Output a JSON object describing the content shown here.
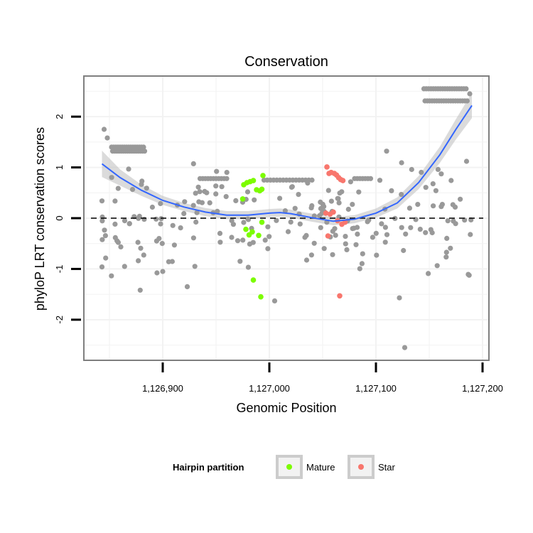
{
  "chart_data": {
    "type": "scatter",
    "title": "Conservation",
    "xlabel": "Genomic Position",
    "ylabel": "phyloP LRT conservation scores",
    "xlim": [
      1126826,
      1127206
    ],
    "ylim": [
      -2.8,
      2.8
    ],
    "x_ticks": [
      1126900,
      1127000,
      1127100,
      1127200
    ],
    "x_tick_labels": [
      "1,126,900",
      "1,127,000",
      "1,127,100",
      "1,127,200"
    ],
    "y_ticks": [
      -2,
      -1,
      0,
      1,
      2
    ],
    "y_tick_labels": [
      "-2",
      "-1",
      "0",
      "1",
      "2"
    ],
    "grid": true,
    "reference_line": {
      "y": 0,
      "style": "dashed"
    },
    "legend": {
      "title": "Hairpin partition",
      "placement": "bottom",
      "entries": [
        {
          "name": "Mature",
          "color": "#7cfc00"
        },
        {
          "name": "Star",
          "color": "#f8766d"
        }
      ]
    },
    "colors": {
      "other": "#999999",
      "Mature": "#7cfc00",
      "Star": "#f8766d",
      "smooth_line": "#3366ff",
      "smooth_band": "#bdbdbd",
      "panel_border": "#7f7f7f",
      "grid": "#f2f2f2"
    },
    "smooth": {
      "x": [
        1126843,
        1126860,
        1126880,
        1126900,
        1126920,
        1126940,
        1126960,
        1126980,
        1127000,
        1127010,
        1127020,
        1127040,
        1127060,
        1127080,
        1127100,
        1127120,
        1127140,
        1127160,
        1127175,
        1127190
      ],
      "y": [
        1.07,
        0.8,
        0.55,
        0.35,
        0.22,
        0.12,
        0.06,
        0.06,
        0.1,
        0.11,
        0.09,
        0.01,
        -0.06,
        -0.02,
        0.1,
        0.3,
        0.7,
        1.25,
        1.75,
        2.22
      ],
      "band_halfwidth": [
        0.26,
        0.16,
        0.11,
        0.09,
        0.08,
        0.08,
        0.08,
        0.08,
        0.08,
        0.08,
        0.08,
        0.08,
        0.08,
        0.08,
        0.09,
        0.11,
        0.13,
        0.16,
        0.2,
        0.25
      ]
    },
    "series": [
      {
        "name": "Mature",
        "points": [
          [
            1126976,
            0.66
          ],
          [
            1126979,
            0.7
          ],
          [
            1126982,
            0.72
          ],
          [
            1126985,
            0.74
          ],
          [
            1126988,
            0.56
          ],
          [
            1126991,
            0.54
          ],
          [
            1126993,
            0.57
          ],
          [
            1126975,
            0.38
          ],
          [
            1126978,
            -0.22
          ],
          [
            1126981,
            -0.33
          ],
          [
            1126984,
            -0.27
          ],
          [
            1126990,
            -0.34
          ],
          [
            1126993,
            -0.08
          ],
          [
            1126985,
            -1.22
          ],
          [
            1126992,
            -1.55
          ],
          [
            1126994,
            0.84
          ]
        ]
      },
      {
        "name": "Star",
        "points": [
          [
            1127054,
            1.01
          ],
          [
            1127056,
            0.88
          ],
          [
            1127058,
            0.9
          ],
          [
            1127061,
            0.88
          ],
          [
            1127063,
            0.85
          ],
          [
            1127065,
            0.8
          ],
          [
            1127067,
            0.76
          ],
          [
            1127069,
            0.74
          ],
          [
            1127053,
            0.1
          ],
          [
            1127057,
            0.08
          ],
          [
            1127060,
            0.12
          ],
          [
            1127064,
            -0.05
          ],
          [
            1127068,
            -0.12
          ],
          [
            1127071,
            -0.08
          ],
          [
            1127055,
            -0.35
          ],
          [
            1127066,
            -1.53
          ]
        ]
      }
    ]
  }
}
